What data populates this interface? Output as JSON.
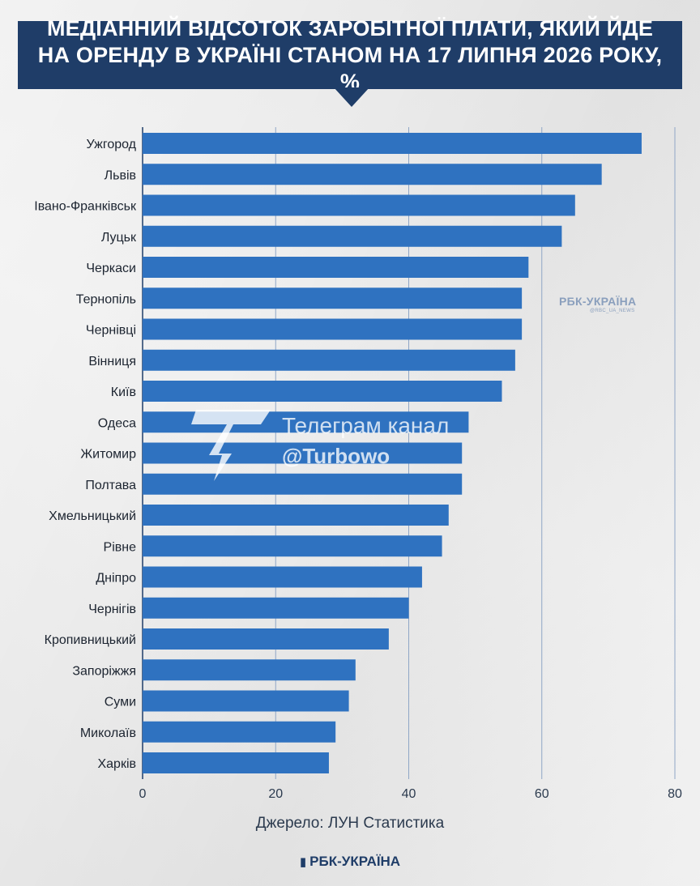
{
  "title": "МЕДІАННИЙ ВІДСОТОК ЗАРОБІТНОЇ ПЛАТИ, ЯКИЙ ЙДЕ НА ОРЕНДУ В УКРАЇНІ СТАНОМ НА 17 ЛИПНЯ 2026 РОКУ, %",
  "source": "Джерело: ЛУН Статистика",
  "brand": "РБК-УКРАЇНА",
  "watermarks": {
    "rbk_label": "РБК-УКРАЇНА",
    "rbk_handle": "@RBC_UA_NEWS",
    "telegram_line1": "Телеграм канал",
    "telegram_line2": "@Turbowo"
  },
  "colors": {
    "bar": "#2f72c0",
    "title_bg": "#1f3d68",
    "grid": "#8fa6c6"
  },
  "chart_data": {
    "type": "bar",
    "orientation": "horizontal",
    "categories": [
      "Ужгород",
      "Львів",
      "Івано-Франківськ",
      "Луцьк",
      "Черкаси",
      "Тернопіль",
      "Чернівці",
      "Вінниця",
      "Київ",
      "Одеса",
      "Житомир",
      "Полтава",
      "Хмельницький",
      "Рівне",
      "Дніпро",
      "Чернігів",
      "Кропивницький",
      "Запоріжжя",
      "Суми",
      "Миколаїв",
      "Харків"
    ],
    "values": [
      75,
      69,
      65,
      63,
      58,
      57,
      57,
      56,
      54,
      49,
      48,
      48,
      46,
      45,
      42,
      40,
      37,
      32,
      31,
      29,
      28
    ],
    "xlim": [
      0,
      80
    ],
    "xticks": [
      0,
      20,
      40,
      60,
      80
    ],
    "grid": "vertical"
  }
}
